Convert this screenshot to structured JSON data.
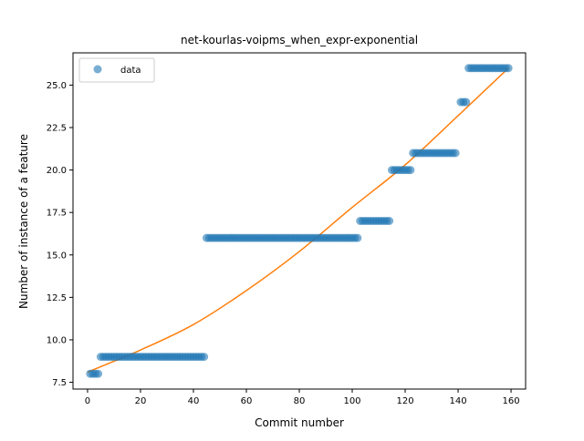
{
  "chart_data": {
    "type": "scatter",
    "title": "net-kourlas-voipms_when_expr-exponential",
    "xlabel": "Commit number",
    "ylabel": "Number of instance of a feature",
    "xlim": [
      -5.5,
      165.5
    ],
    "ylim": [
      7.1,
      26.9
    ],
    "xticks": [
      0,
      20,
      40,
      60,
      80,
      100,
      120,
      140,
      160
    ],
    "xtick_labels": [
      "0",
      "20",
      "40",
      "60",
      "80",
      "100",
      "120",
      "140",
      "160"
    ],
    "yticks": [
      7.5,
      10.0,
      12.5,
      15.0,
      17.5,
      20.0,
      22.5,
      25.0
    ],
    "ytick_labels": [
      "7.5",
      "10.0",
      "12.5",
      "15.0",
      "17.5",
      "20.0",
      "22.5",
      "25.0"
    ],
    "grid": false,
    "legend": {
      "position": "upper-left",
      "entries": [
        "data"
      ]
    },
    "series": [
      {
        "name": "data",
        "kind": "scatter",
        "color": "#1f77b4",
        "segments": [
          {
            "x_start": 1,
            "x_end": 4,
            "y": 8
          },
          {
            "x_start": 5,
            "x_end": 44,
            "y": 9
          },
          {
            "x_start": 45,
            "x_end": 102,
            "y": 16
          },
          {
            "x_start": 103,
            "x_end": 114,
            "y": 17
          },
          {
            "x_start": 115,
            "x_end": 122,
            "y": 20
          },
          {
            "x_start": 123,
            "x_end": 139,
            "y": 21
          },
          {
            "x_start": 141,
            "x_end": 143,
            "y": 24
          },
          {
            "x_start": 144,
            "x_end": 159,
            "y": 26
          }
        ]
      },
      {
        "kind": "line",
        "color": "#ff7f0e",
        "model": "exponential",
        "x": [
          0,
          20,
          40,
          60,
          80,
          100,
          120,
          140,
          159
        ],
        "y": [
          8.1,
          9.4,
          10.9,
          12.9,
          15.2,
          17.8,
          20.3,
          23.2,
          26.0
        ]
      }
    ]
  }
}
